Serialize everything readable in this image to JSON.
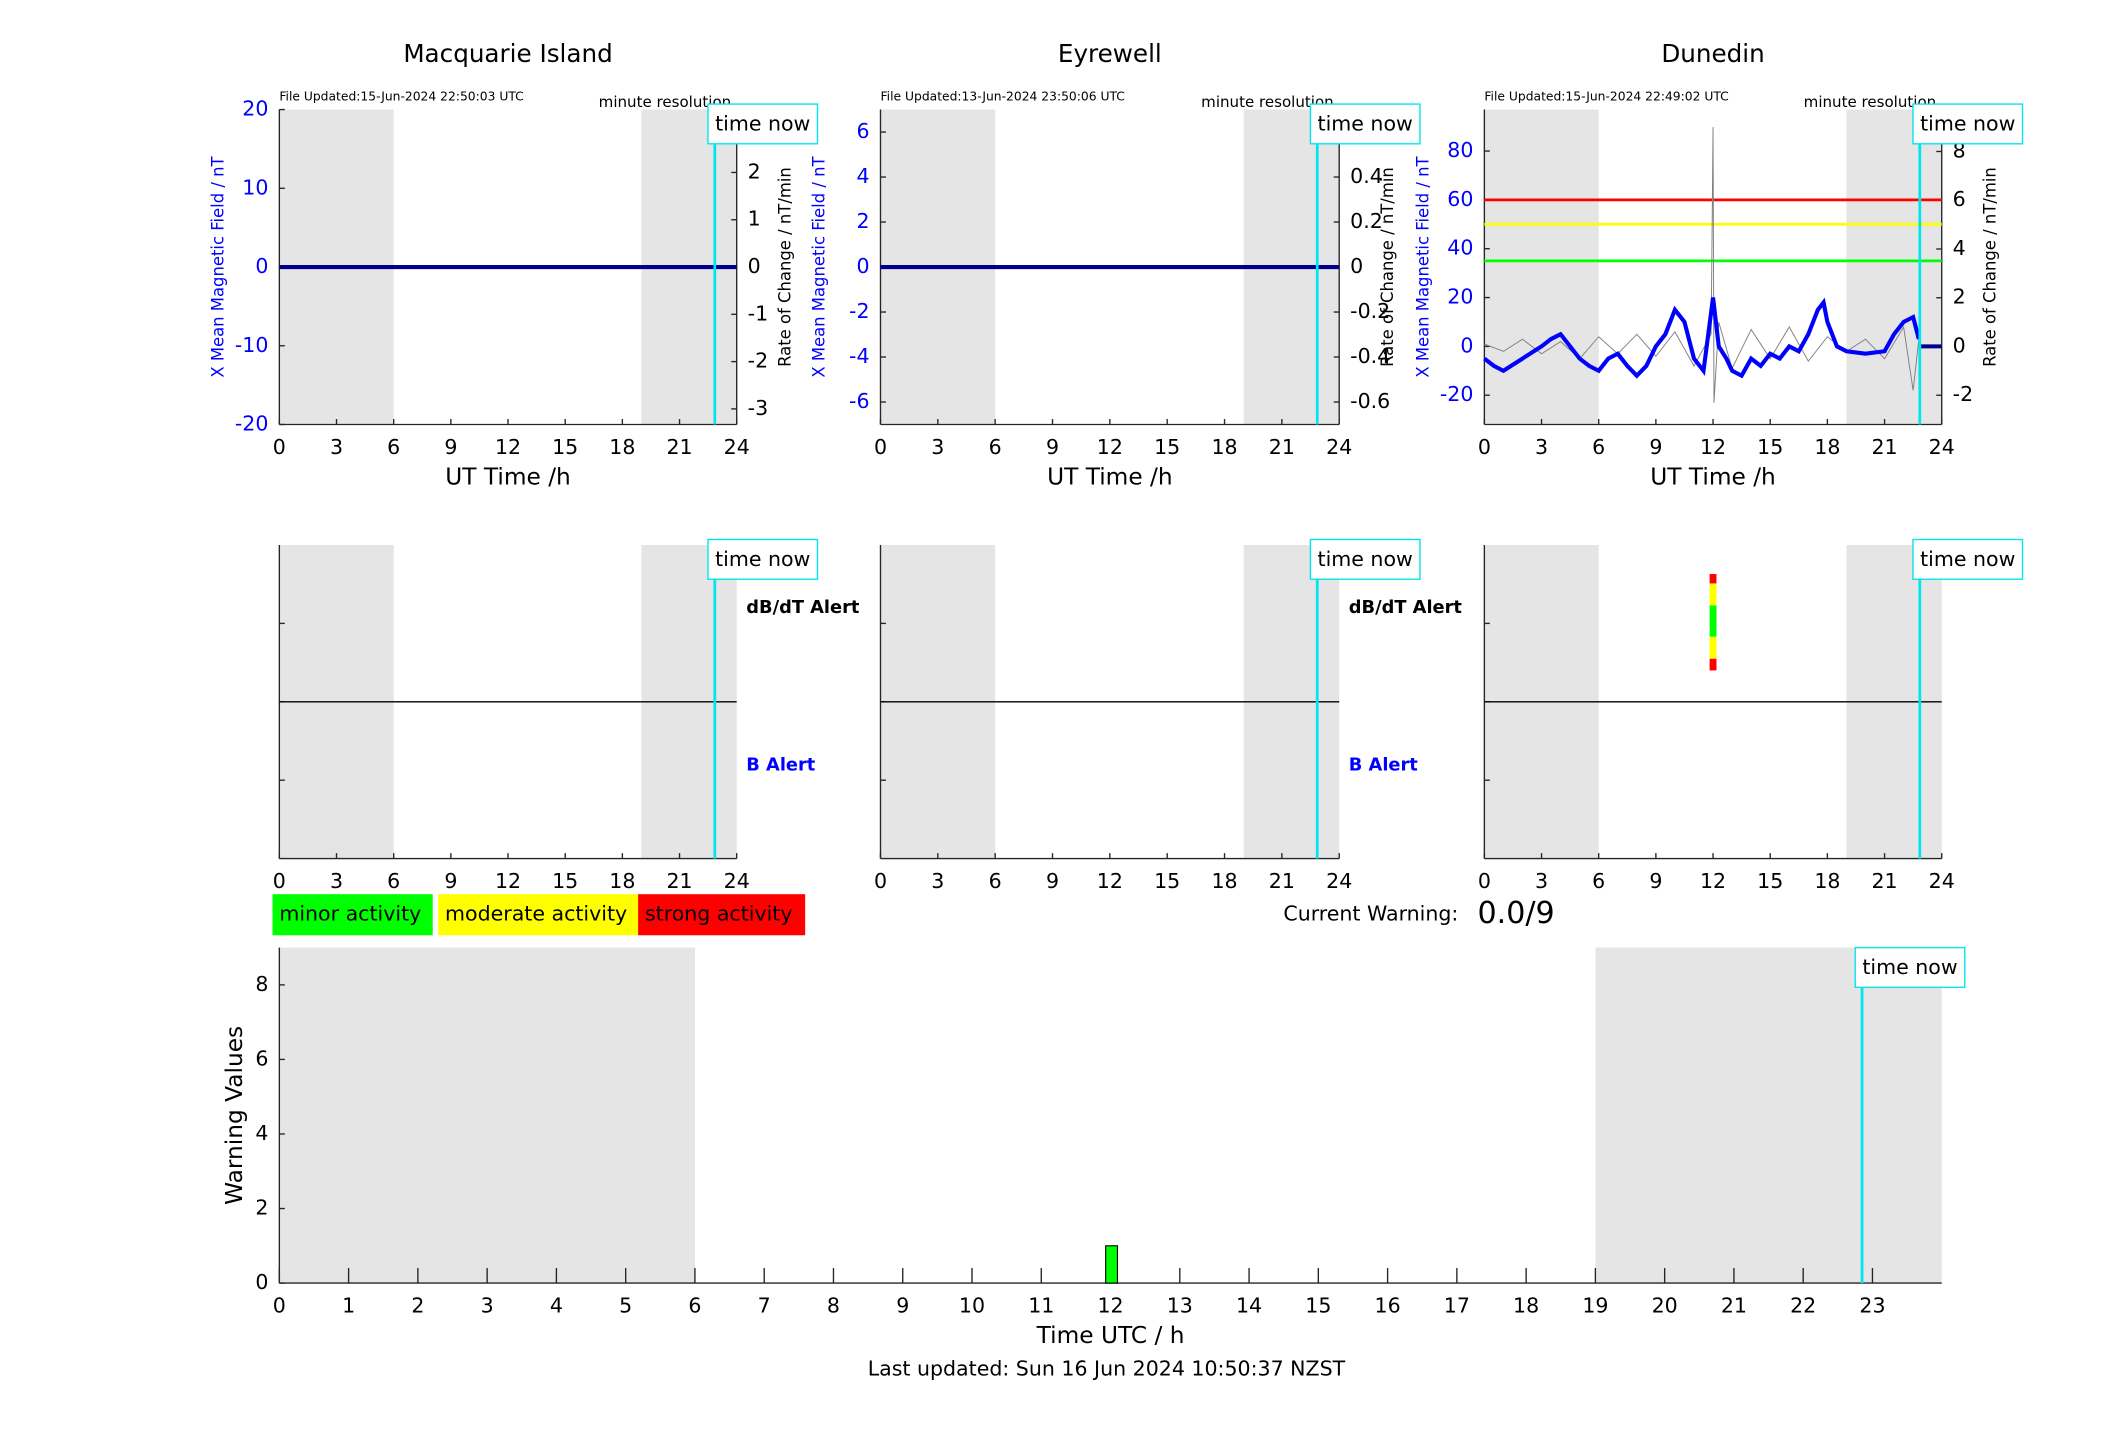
{
  "chart_data": [
    {
      "type": "line",
      "title": "Macquarie Island",
      "file_updated": "File Updated:15-Jun-2024 22:50:03 UTC",
      "resolution": "minute resolution",
      "marker_label": "time now",
      "xlabel": "UT Time /h",
      "ylabel": "X Mean Magnetic Field / nT",
      "y2label": "Rate of Change / nT/min",
      "ycolor": "#0000ff",
      "xlim": [
        0,
        24
      ],
      "xticks": [
        0,
        3,
        6,
        9,
        12,
        15,
        18,
        21,
        24
      ],
      "ylim": [
        -20,
        20
      ],
      "yticks": [
        -20,
        -10,
        0,
        10,
        20
      ],
      "y2lim": [
        -3.33,
        3.33
      ],
      "y2ticks": [
        -3,
        -2,
        -1,
        0,
        1,
        2,
        3
      ],
      "shaded": [
        [
          0,
          6
        ],
        [
          19,
          24
        ]
      ],
      "time_now": 22.85,
      "series": [
        {
          "color": "#00008b",
          "x": [
            0,
            24
          ],
          "values": [
            0,
            0
          ]
        }
      ]
    },
    {
      "type": "line",
      "title": "Eyrewell",
      "file_updated": "File Updated:13-Jun-2024 23:50:06 UTC",
      "resolution": "minute resolution",
      "marker_label": "time now",
      "xlabel": "UT Time /h",
      "ylabel": "X Mean Magnetic Field / nT",
      "y2label": "Rate of Change / nT/min",
      "ycolor": "#0000ff",
      "xlim": [
        0,
        24
      ],
      "xticks": [
        0,
        3,
        6,
        9,
        12,
        15,
        18,
        21,
        24
      ],
      "ylim": [
        -7,
        7
      ],
      "yticks": [
        -6,
        -4,
        -2,
        0,
        2,
        4,
        6
      ],
      "y2lim": [
        -0.7,
        0.7
      ],
      "y2ticks": [
        -0.6,
        -0.4,
        -0.2,
        0,
        0.2,
        0.4,
        0.6
      ],
      "shaded": [
        [
          0,
          6
        ],
        [
          19,
          24
        ]
      ],
      "time_now": 22.85,
      "series": [
        {
          "color": "#00008b",
          "x": [
            0,
            24
          ],
          "values": [
            0,
            0
          ]
        }
      ]
    },
    {
      "type": "line",
      "title": "Dunedin",
      "file_updated": "File Updated:15-Jun-2024 22:49:02 UTC",
      "resolution": "minute resolution",
      "marker_label": "time now",
      "xlabel": "UT Time /h",
      "ylabel": "X Mean Magnetic Field / nT",
      "y2label": "Rate of Change / nT/min",
      "ycolor": "#0000ff",
      "xlim": [
        0,
        24
      ],
      "xticks": [
        0,
        3,
        6,
        9,
        12,
        15,
        18,
        21,
        24
      ],
      "ylim": [
        -32,
        97
      ],
      "yticks": [
        -20,
        0,
        20,
        40,
        60,
        80
      ],
      "y2lim": [
        -3.2,
        9.72
      ],
      "y2ticks": [
        -2,
        0,
        2,
        4,
        6,
        8
      ],
      "shaded": [
        [
          0,
          6
        ],
        [
          19,
          24
        ]
      ],
      "time_now": 22.85,
      "thresholds": [
        {
          "value": 60,
          "color": "#ff0000"
        },
        {
          "value": 50,
          "color": "#ffff00"
        },
        {
          "value": 35,
          "color": "#00ff00"
        }
      ],
      "series": [
        {
          "color": "#808080",
          "axis": "y2",
          "x": [
            0,
            1,
            2,
            3,
            4,
            5,
            6,
            7,
            8,
            9,
            10,
            11,
            11.9,
            12,
            12.05,
            12.3,
            13,
            14,
            15,
            16,
            17,
            18,
            19,
            20,
            21,
            22,
            22.5,
            22.8
          ],
          "values": [
            0.1,
            -0.2,
            0.3,
            -0.3,
            0.2,
            -0.5,
            0.4,
            -0.3,
            0.5,
            -0.4,
            0.6,
            -0.8,
            0.5,
            9,
            -2.3,
            1,
            -0.9,
            0.7,
            -0.5,
            0.8,
            -0.6,
            0.4,
            -0.2,
            0.3,
            -0.5,
            0.8,
            -1.8,
            0.3
          ]
        },
        {
          "color": "#0000ff",
          "x": [
            0,
            0.5,
            1,
            2,
            3,
            3.5,
            4,
            4.5,
            5,
            5.5,
            6,
            6.5,
            7,
            7.5,
            8,
            8.5,
            9,
            9.5,
            10,
            10.5,
            11,
            11.5,
            12,
            12.3,
            12.7,
            13,
            13.5,
            14,
            14.5,
            15,
            15.5,
            16,
            16.5,
            17,
            17.5,
            17.8,
            18,
            18.5,
            19,
            20,
            21,
            21.5,
            22,
            22.5,
            22.8
          ],
          "values": [
            -5,
            -8,
            -10,
            -5,
            0,
            3,
            5,
            0,
            -5,
            -8,
            -10,
            -5,
            -3,
            -8,
            -12,
            -8,
            0,
            5,
            15,
            10,
            -5,
            -10,
            20,
            0,
            -5,
            -10,
            -12,
            -5,
            -8,
            -3,
            -5,
            0,
            -2,
            5,
            15,
            18,
            10,
            0,
            -2,
            -3,
            -2,
            5,
            10,
            12,
            3
          ]
        },
        {
          "color": "#00008b",
          "x": [
            22.85,
            24
          ],
          "values": [
            0,
            0
          ]
        }
      ]
    },
    {
      "type": "alert",
      "marker_label": "time now",
      "xlim": [
        0,
        24
      ],
      "xticks": [
        0,
        3,
        6,
        9,
        12,
        15,
        18,
        21,
        24
      ],
      "ylim": [
        0,
        4
      ],
      "yticks": [
        1,
        2,
        3
      ],
      "midline": 2,
      "shaded": [
        [
          0,
          6
        ],
        [
          19,
          24
        ]
      ],
      "time_now": 22.85,
      "labels": [
        {
          "text": "dB/dT Alert",
          "color": "#000000"
        },
        {
          "text": "B Alert",
          "color": "#0000ff"
        }
      ]
    },
    {
      "type": "alert",
      "marker_label": "time now",
      "xlim": [
        0,
        24
      ],
      "xticks": [
        0,
        3,
        6,
        9,
        12,
        15,
        18,
        21,
        24
      ],
      "ylim": [
        0,
        4
      ],
      "yticks": [
        1,
        2,
        3
      ],
      "midline": 2,
      "shaded": [
        [
          0,
          6
        ],
        [
          19,
          24
        ]
      ],
      "time_now": 22.85,
      "labels": [
        {
          "text": "dB/dT Alert",
          "color": "#000000"
        },
        {
          "text": "B Alert",
          "color": "#0000ff"
        }
      ]
    },
    {
      "type": "alert",
      "marker_label": "time now",
      "xlim": [
        0,
        24
      ],
      "xticks": [
        0,
        3,
        6,
        9,
        12,
        15,
        18,
        21,
        24
      ],
      "ylim": [
        0,
        4
      ],
      "yticks": [
        1,
        2,
        3
      ],
      "midline": 2,
      "shaded": [
        [
          0,
          6
        ],
        [
          19,
          24
        ]
      ],
      "time_now": 22.85,
      "alert_bar": {
        "x": 12,
        "base": 2.4,
        "segments": [
          {
            "color": "#ff0000",
            "value": 0.15
          },
          {
            "color": "#ffff00",
            "value": 0.28
          },
          {
            "color": "#00ff00",
            "value": 0.4
          },
          {
            "color": "#ffff00",
            "value": 0.28
          },
          {
            "color": "#ff0000",
            "value": 0.12
          }
        ]
      }
    },
    {
      "type": "histogram",
      "marker_label": "time now",
      "xlabel": "Time UTC / h",
      "ylabel": "Warning Values",
      "xlim": [
        0,
        24
      ],
      "xticks": [
        0,
        1,
        2,
        3,
        4,
        5,
        6,
        7,
        8,
        9,
        10,
        11,
        12,
        13,
        14,
        15,
        16,
        17,
        18,
        19,
        20,
        21,
        22,
        23
      ],
      "ylim": [
        0,
        9
      ],
      "yticks": [
        0,
        2,
        4,
        6,
        8
      ],
      "shaded": [
        [
          0,
          6
        ],
        [
          19,
          24
        ]
      ],
      "time_now": 22.85,
      "bins": [
        11.93,
        12.1
      ],
      "values": [
        1
      ],
      "color": "#00ff00"
    }
  ],
  "legend": [
    {
      "label": "minor activity",
      "color": "#00ff00"
    },
    {
      "label": "moderate activity",
      "color": "#ffff00"
    },
    {
      "label": "strong activity",
      "color": "#ff0000"
    }
  ],
  "current_warning": {
    "label": "Current Warning:",
    "value": "0.0/9"
  },
  "last_updated": "Last updated: Sun 16 Jun 2024 10:50:37 NZST"
}
